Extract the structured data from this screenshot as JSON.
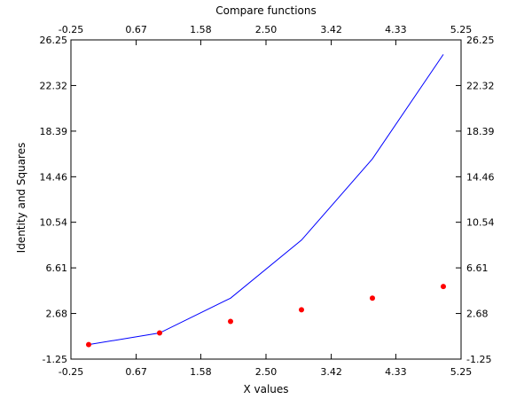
{
  "chart_data": {
    "type": "line",
    "title": "Compare functions",
    "xlabel": "X values",
    "ylabel": "Identity and Squares",
    "xlim": [
      -0.25,
      5.25
    ],
    "ylim": [
      -1.25,
      26.25
    ],
    "x_ticks": [
      "-0.25",
      "0.67",
      "1.58",
      "2.50",
      "3.42",
      "4.33",
      "5.25"
    ],
    "y_ticks": [
      "-1.25",
      "2.68",
      "6.61",
      "10.54",
      "14.46",
      "18.39",
      "22.32",
      "26.25"
    ],
    "x_tick_values": [
      -0.25,
      0.67,
      1.58,
      2.5,
      3.42,
      4.33,
      5.25
    ],
    "y_tick_values": [
      -1.25,
      2.68,
      6.61,
      10.54,
      14.46,
      18.39,
      22.32,
      26.25
    ],
    "grid": false,
    "series": [
      {
        "type": "line",
        "color": "#0000ff",
        "x": [
          0,
          1,
          2,
          3,
          4,
          5
        ],
        "y": [
          0,
          1,
          4,
          9,
          16,
          25
        ]
      },
      {
        "type": "scatter",
        "color": "#ff0000",
        "x": [
          0,
          1,
          2,
          3,
          4,
          5
        ],
        "y": [
          0,
          1,
          2,
          3,
          4,
          5
        ]
      }
    ]
  }
}
